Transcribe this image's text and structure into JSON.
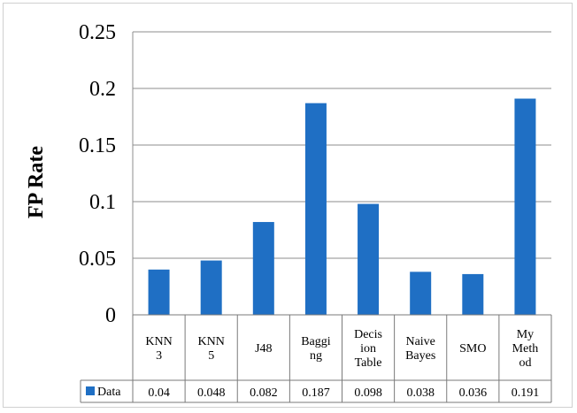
{
  "chart_data": {
    "type": "bar",
    "title": "",
    "xlabel": "",
    "ylabel": "FP Rate",
    "ylim": [
      0,
      0.25
    ],
    "yticks": [
      "0",
      "0.05",
      "0.1",
      "0.15",
      "0.2",
      "0.25"
    ],
    "categories": [
      [
        "KNN",
        "3"
      ],
      [
        "KNN",
        "5"
      ],
      [
        "J48"
      ],
      [
        "Baggi",
        "ng"
      ],
      [
        "Decis",
        "ion",
        "Table"
      ],
      [
        "Naive",
        "Bayes"
      ],
      [
        "SMO"
      ],
      [
        "My",
        "Meth",
        "od"
      ]
    ],
    "series": [
      {
        "name": "Data",
        "values": [
          0.04,
          0.048,
          0.082,
          0.187,
          0.098,
          0.038,
          0.036,
          0.191
        ],
        "value_labels": [
          "0.04",
          "0.048",
          "0.082",
          "0.187",
          "0.098",
          "0.038",
          "0.036",
          "0.191"
        ]
      }
    ],
    "bar_color": "#1f6fc4",
    "grid": true,
    "legend": "data-table"
  }
}
